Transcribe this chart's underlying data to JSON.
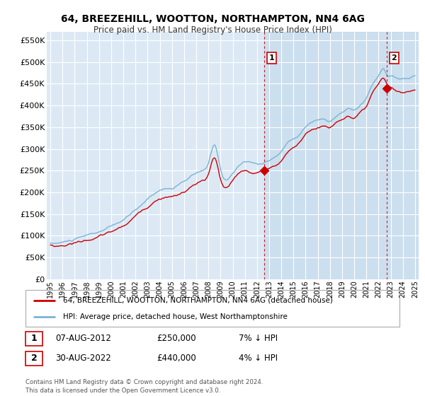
{
  "title": "64, BREEZEHILL, WOOTTON, NORTHAMPTON, NN4 6AG",
  "subtitle": "Price paid vs. HM Land Registry's House Price Index (HPI)",
  "background_color": "#ffffff",
  "plot_bg_color": "#dce9f5",
  "shade_color": "#c5d8ef",
  "ylim": [
    0,
    570000
  ],
  "yticks": [
    0,
    50000,
    100000,
    150000,
    200000,
    250000,
    300000,
    350000,
    400000,
    450000,
    500000,
    550000
  ],
  "legend_entries": [
    "64, BREEZEHILL, WOOTTON, NORTHAMPTON, NN4 6AG (detached house)",
    "HPI: Average price, detached house, West Northamptonshire"
  ],
  "annotation1": {
    "label": "1",
    "date": "07-AUG-2012",
    "price": "£250,000",
    "hpi": "7% ↓ HPI"
  },
  "annotation2": {
    "label": "2",
    "date": "30-AUG-2022",
    "price": "£440,000",
    "hpi": "4% ↓ HPI"
  },
  "footer": "Contains HM Land Registry data © Crown copyright and database right 2024.\nThis data is licensed under the Open Government Licence v3.0.",
  "hpi_color": "#7ab3d4",
  "price_color": "#cc0000",
  "sale1_x": 2012.58,
  "sale1_y": 250000,
  "sale2_x": 2022.66,
  "sale2_y": 440000,
  "vline1_x": 2012.58,
  "vline2_x": 2022.66,
  "xlim_left": 1994.7,
  "xlim_right": 2025.3
}
